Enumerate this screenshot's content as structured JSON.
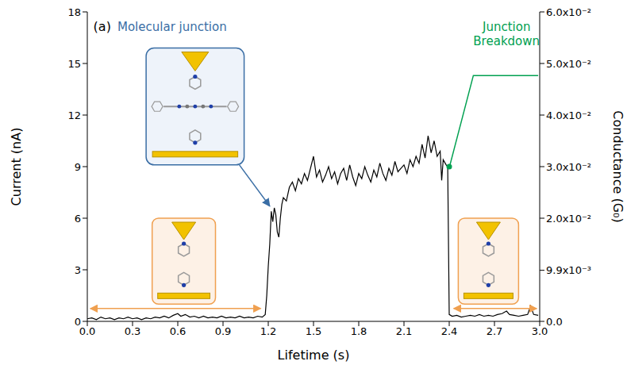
{
  "chart_data": {
    "type": "line",
    "color": "#000000",
    "grid": false,
    "xlabel": "Lifetime (s)",
    "ylabel": "Current (nA)",
    "y2label": "Conductance (G₀)",
    "annotations": [
      "(a)",
      "Molecular junction",
      "Junction Breakdown"
    ],
    "xlim": [
      0,
      3
    ],
    "xticks": [
      {
        "value": 0,
        "label": "0.0"
      },
      0.3,
      0.6,
      0.9,
      1.2,
      1.5,
      1.8,
      2.1,
      2.4,
      2.7,
      {
        "value": 3,
        "label": "3.0"
      }
    ],
    "ylim": [
      0,
      18
    ],
    "yticks": [
      0,
      3,
      6,
      9,
      12,
      15,
      18
    ],
    "y2lim": [
      0,
      0.06
    ],
    "y2ticks": [
      {
        "value": 0,
        "label": "0.0"
      },
      {
        "value": 0.0099,
        "label": "9.9x10⁻³"
      },
      {
        "value": 0.02,
        "label": "2.0x10⁻²"
      },
      {
        "value": 0.03,
        "label": "3.0x10⁻²"
      },
      {
        "value": 0.04,
        "label": "4.0x10⁻²"
      },
      {
        "value": 0.05,
        "label": "5.0x10⁻²"
      },
      {
        "value": 0.06,
        "label": "6.0x10⁻²"
      }
    ],
    "x": [
      0.0,
      0.03,
      0.06,
      0.09,
      0.12,
      0.15,
      0.18,
      0.21,
      0.24,
      0.27,
      0.3,
      0.33,
      0.36,
      0.39,
      0.42,
      0.45,
      0.48,
      0.51,
      0.54,
      0.57,
      0.6,
      0.62,
      0.65,
      0.68,
      0.71,
      0.74,
      0.77,
      0.8,
      0.83,
      0.86,
      0.89,
      0.92,
      0.95,
      0.98,
      1.01,
      1.04,
      1.07,
      1.1,
      1.13,
      1.16,
      1.18,
      1.19,
      1.2,
      1.21,
      1.22,
      1.23,
      1.24,
      1.25,
      1.26,
      1.27,
      1.28,
      1.29,
      1.3,
      1.32,
      1.34,
      1.36,
      1.38,
      1.4,
      1.42,
      1.44,
      1.46,
      1.48,
      1.5,
      1.52,
      1.54,
      1.56,
      1.58,
      1.6,
      1.62,
      1.64,
      1.66,
      1.68,
      1.7,
      1.72,
      1.74,
      1.76,
      1.78,
      1.8,
      1.82,
      1.84,
      1.86,
      1.88,
      1.9,
      1.92,
      1.94,
      1.96,
      1.98,
      2.0,
      2.02,
      2.04,
      2.06,
      2.08,
      2.1,
      2.12,
      2.14,
      2.16,
      2.18,
      2.2,
      2.22,
      2.24,
      2.26,
      2.28,
      2.3,
      2.32,
      2.34,
      2.35,
      2.36,
      2.38,
      2.39,
      2.4,
      2.42,
      2.45,
      2.48,
      2.51,
      2.54,
      2.57,
      2.6,
      2.63,
      2.66,
      2.69,
      2.72,
      2.75,
      2.78,
      2.8,
      2.83,
      2.86,
      2.89,
      2.92,
      2.94,
      2.96,
      2.99
    ],
    "values": [
      0.15,
      0.2,
      0.1,
      0.25,
      0.15,
      0.2,
      0.1,
      0.2,
      0.15,
      0.25,
      0.15,
      0.2,
      0.1,
      0.2,
      0.15,
      0.25,
      0.2,
      0.3,
      0.2,
      0.35,
      0.45,
      0.3,
      0.4,
      0.25,
      0.3,
      0.2,
      0.3,
      0.2,
      0.25,
      0.2,
      0.3,
      0.2,
      0.25,
      0.2,
      0.3,
      0.2,
      0.25,
      0.2,
      0.3,
      0.25,
      0.4,
      1.5,
      3.2,
      4.5,
      6.4,
      5.8,
      6.6,
      6.2,
      5.2,
      4.9,
      6.0,
      6.8,
      7.2,
      7.0,
      7.8,
      8.1,
      7.6,
      8.3,
      8.0,
      8.6,
      8.2,
      8.9,
      9.6,
      8.4,
      8.8,
      8.1,
      8.5,
      9.0,
      8.3,
      8.7,
      8.0,
      8.6,
      8.9,
      8.2,
      9.1,
      8.4,
      7.9,
      8.6,
      8.3,
      9.0,
      8.5,
      8.1,
      8.8,
      8.4,
      9.2,
      8.6,
      8.2,
      8.9,
      8.5,
      9.3,
      8.7,
      8.9,
      9.1,
      8.6,
      9.4,
      9.0,
      9.6,
      9.2,
      10.3,
      9.5,
      10.8,
      9.8,
      10.5,
      9.6,
      9.9,
      8.2,
      9.4,
      9.1,
      9.0,
      0.4,
      0.3,
      0.35,
      0.25,
      0.3,
      0.35,
      0.3,
      0.4,
      0.3,
      0.35,
      0.3,
      0.4,
      0.45,
      0.6,
      0.4,
      0.35,
      0.3,
      0.35,
      0.4,
      0.9,
      0.4,
      0.35
    ]
  }
}
